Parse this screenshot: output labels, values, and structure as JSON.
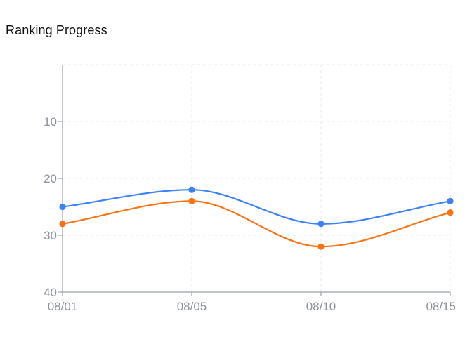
{
  "title": "Ranking Progress",
  "chart_data": {
    "type": "line",
    "title": "Ranking Progress",
    "xlabel": "",
    "ylabel": "",
    "x": [
      "08/01",
      "08/05",
      "08/10",
      "08/15"
    ],
    "ylim": [
      0,
      40
    ],
    "y_inverted": true,
    "y_ticks": [
      10,
      20,
      30,
      40
    ],
    "grid": true,
    "smooth": true,
    "series": [
      {
        "values": [
          25,
          22,
          28,
          24
        ],
        "color": "#3b82f6"
      },
      {
        "values": [
          28,
          24,
          32,
          26
        ],
        "color": "#f97316"
      }
    ]
  }
}
